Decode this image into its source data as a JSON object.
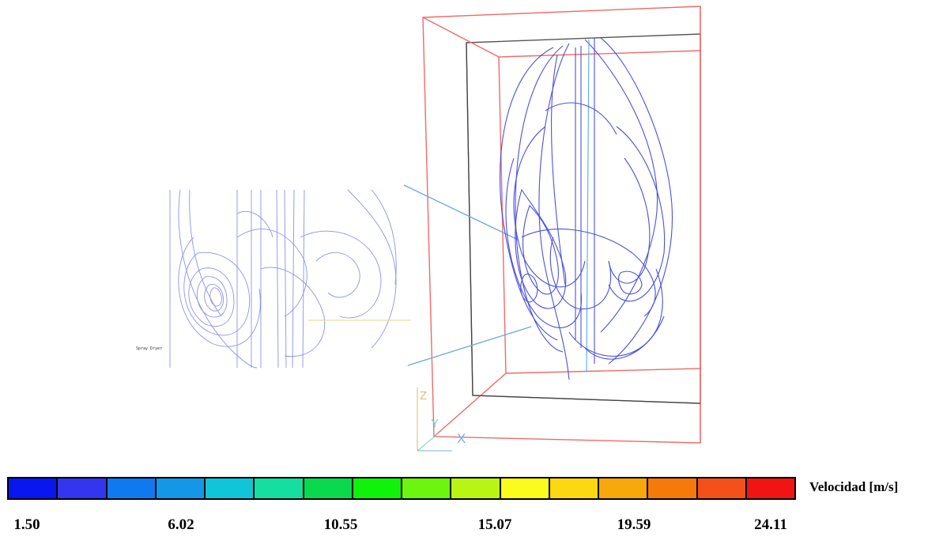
{
  "legend": {
    "title": "Velocidad [m/s]",
    "ticks": [
      "1.50",
      "6.02",
      "10.55",
      "15.07",
      "19.59",
      "24.11"
    ],
    "colors": [
      "#0a16f0",
      "#3236ef",
      "#0f7af0",
      "#1497e6",
      "#11c5d8",
      "#14dea0",
      "#0ad94e",
      "#0ff20a",
      "#6cf50e",
      "#b8f512",
      "#fbfb1c",
      "#fbd80f",
      "#f8a80a",
      "#f57a0a",
      "#f4501a",
      "#f01414"
    ]
  },
  "inset": {
    "label": "Spray Dryer"
  },
  "axes": {
    "x_label": "X",
    "y_label": "Y",
    "z_label": "Z"
  },
  "colors": {
    "streamline_main": "#3a3fd6",
    "streamline_inset": "#7a80e6",
    "box_front": "#f06b6b",
    "box_back": "#555555",
    "callout": "#6aa8e0"
  }
}
